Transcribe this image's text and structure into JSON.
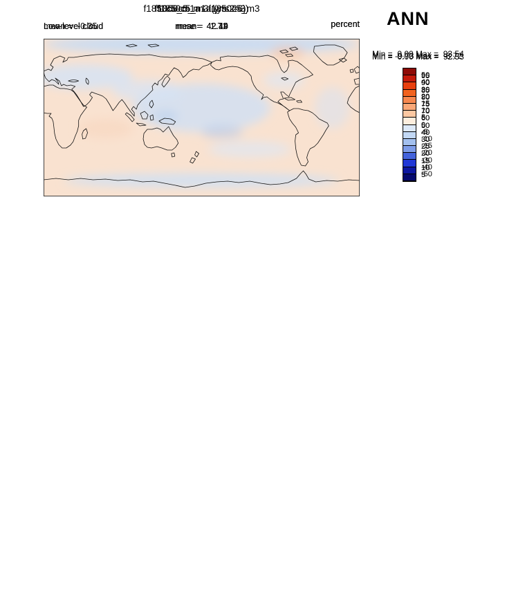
{
  "season_label": "ANN",
  "chart_data": [
    {
      "type": "heatmap",
      "projection": "global lat-lon map, Pacific-centered, coastlines overlaid",
      "title": "f1850c5_m1a (yrs 2-3)",
      "variable": "Low-level cloud",
      "units": "percent",
      "stats": {
        "mean": 42.14,
        "min": 0.0,
        "max": 93.54
      },
      "labels": {
        "left": "Low-level cloud",
        "center": "mean=  42.14",
        "units": "percent",
        "minmax": "Min =  0.00 Max =  93.54"
      },
      "colorbar": {
        "tick_labels": [
          "95",
          "90",
          "85",
          "80",
          "75",
          "70",
          "60",
          "50",
          "40",
          "30",
          "25",
          "20",
          "15",
          "10",
          "5"
        ],
        "colors": [
          "#8e0b07",
          "#c41a0b",
          "#e8400f",
          "#f2631f",
          "#f8884f",
          "#fba878",
          "#fcc8a2",
          "#fdeede",
          "#dde9f8",
          "#c2d8f4",
          "#a3c0ee",
          "#7e9ce8",
          "#4463dc",
          "#2138d6",
          "#0d17a0",
          "#060a6e"
        ]
      }
    },
    {
      "type": "heatmap",
      "projection": "global lat-lon map, Pacific-centered, coastlines overlaid",
      "title": "f1850c5_m3 (yrs 2-6)",
      "variable": "Low-level cloud",
      "units": "percent",
      "stats": {
        "mean": 42.49,
        "min": 0.0,
        "max": 92.53
      },
      "labels": {
        "left": "Low-level cloud",
        "center": "mean=  42.49",
        "units": "percent",
        "minmax": "Min =  0.00 Max =  92.53"
      },
      "colorbar": {
        "tick_labels": [
          "95",
          "90",
          "85",
          "80",
          "75",
          "70",
          "60",
          "50",
          "40",
          "30",
          "25",
          "20",
          "15",
          "10",
          "5"
        ],
        "colors": [
          "#8e0b07",
          "#c41a0b",
          "#e8400f",
          "#f2631f",
          "#f8884f",
          "#fba878",
          "#fcc8a2",
          "#fdeede",
          "#dde9f8",
          "#c2d8f4",
          "#a3c0ee",
          "#7e9ce8",
          "#4463dc",
          "#2138d6",
          "#0d17a0",
          "#060a6e"
        ]
      }
    },
    {
      "type": "heatmap",
      "projection": "global lat-lon map, Pacific-centered, coastlines overlaid",
      "title": "f1850c5_m1a - f1850c5_m3",
      "variable": "Low-level cloud difference",
      "units": "percent",
      "stats": {
        "mean": -0.35,
        "rmse": 1.71,
        "min": -9.73,
        "max": 8.72
      },
      "labels": {
        "left": "mean =  -0.35",
        "center": "rmse =   1.71",
        "units": "percent",
        "minmax": "Min = -9.73 Max =   8.72"
      },
      "colorbar": {
        "tick_labels": [
          "50",
          "40",
          "30",
          "20",
          "15",
          "10",
          "5",
          "0",
          "-5",
          "-10",
          "-15",
          "-20",
          "-30",
          "-40",
          "-50"
        ],
        "colors": [
          "#8e0b07",
          "#c41a0b",
          "#e8400f",
          "#f2631f",
          "#f8884f",
          "#fba878",
          "#fcc8a2",
          "#fdeede",
          "#dde9f8",
          "#c2d8f4",
          "#a3c0ee",
          "#7e9ce8",
          "#4463dc",
          "#2138d6",
          "#0d17a0",
          "#060a6e"
        ]
      }
    }
  ]
}
